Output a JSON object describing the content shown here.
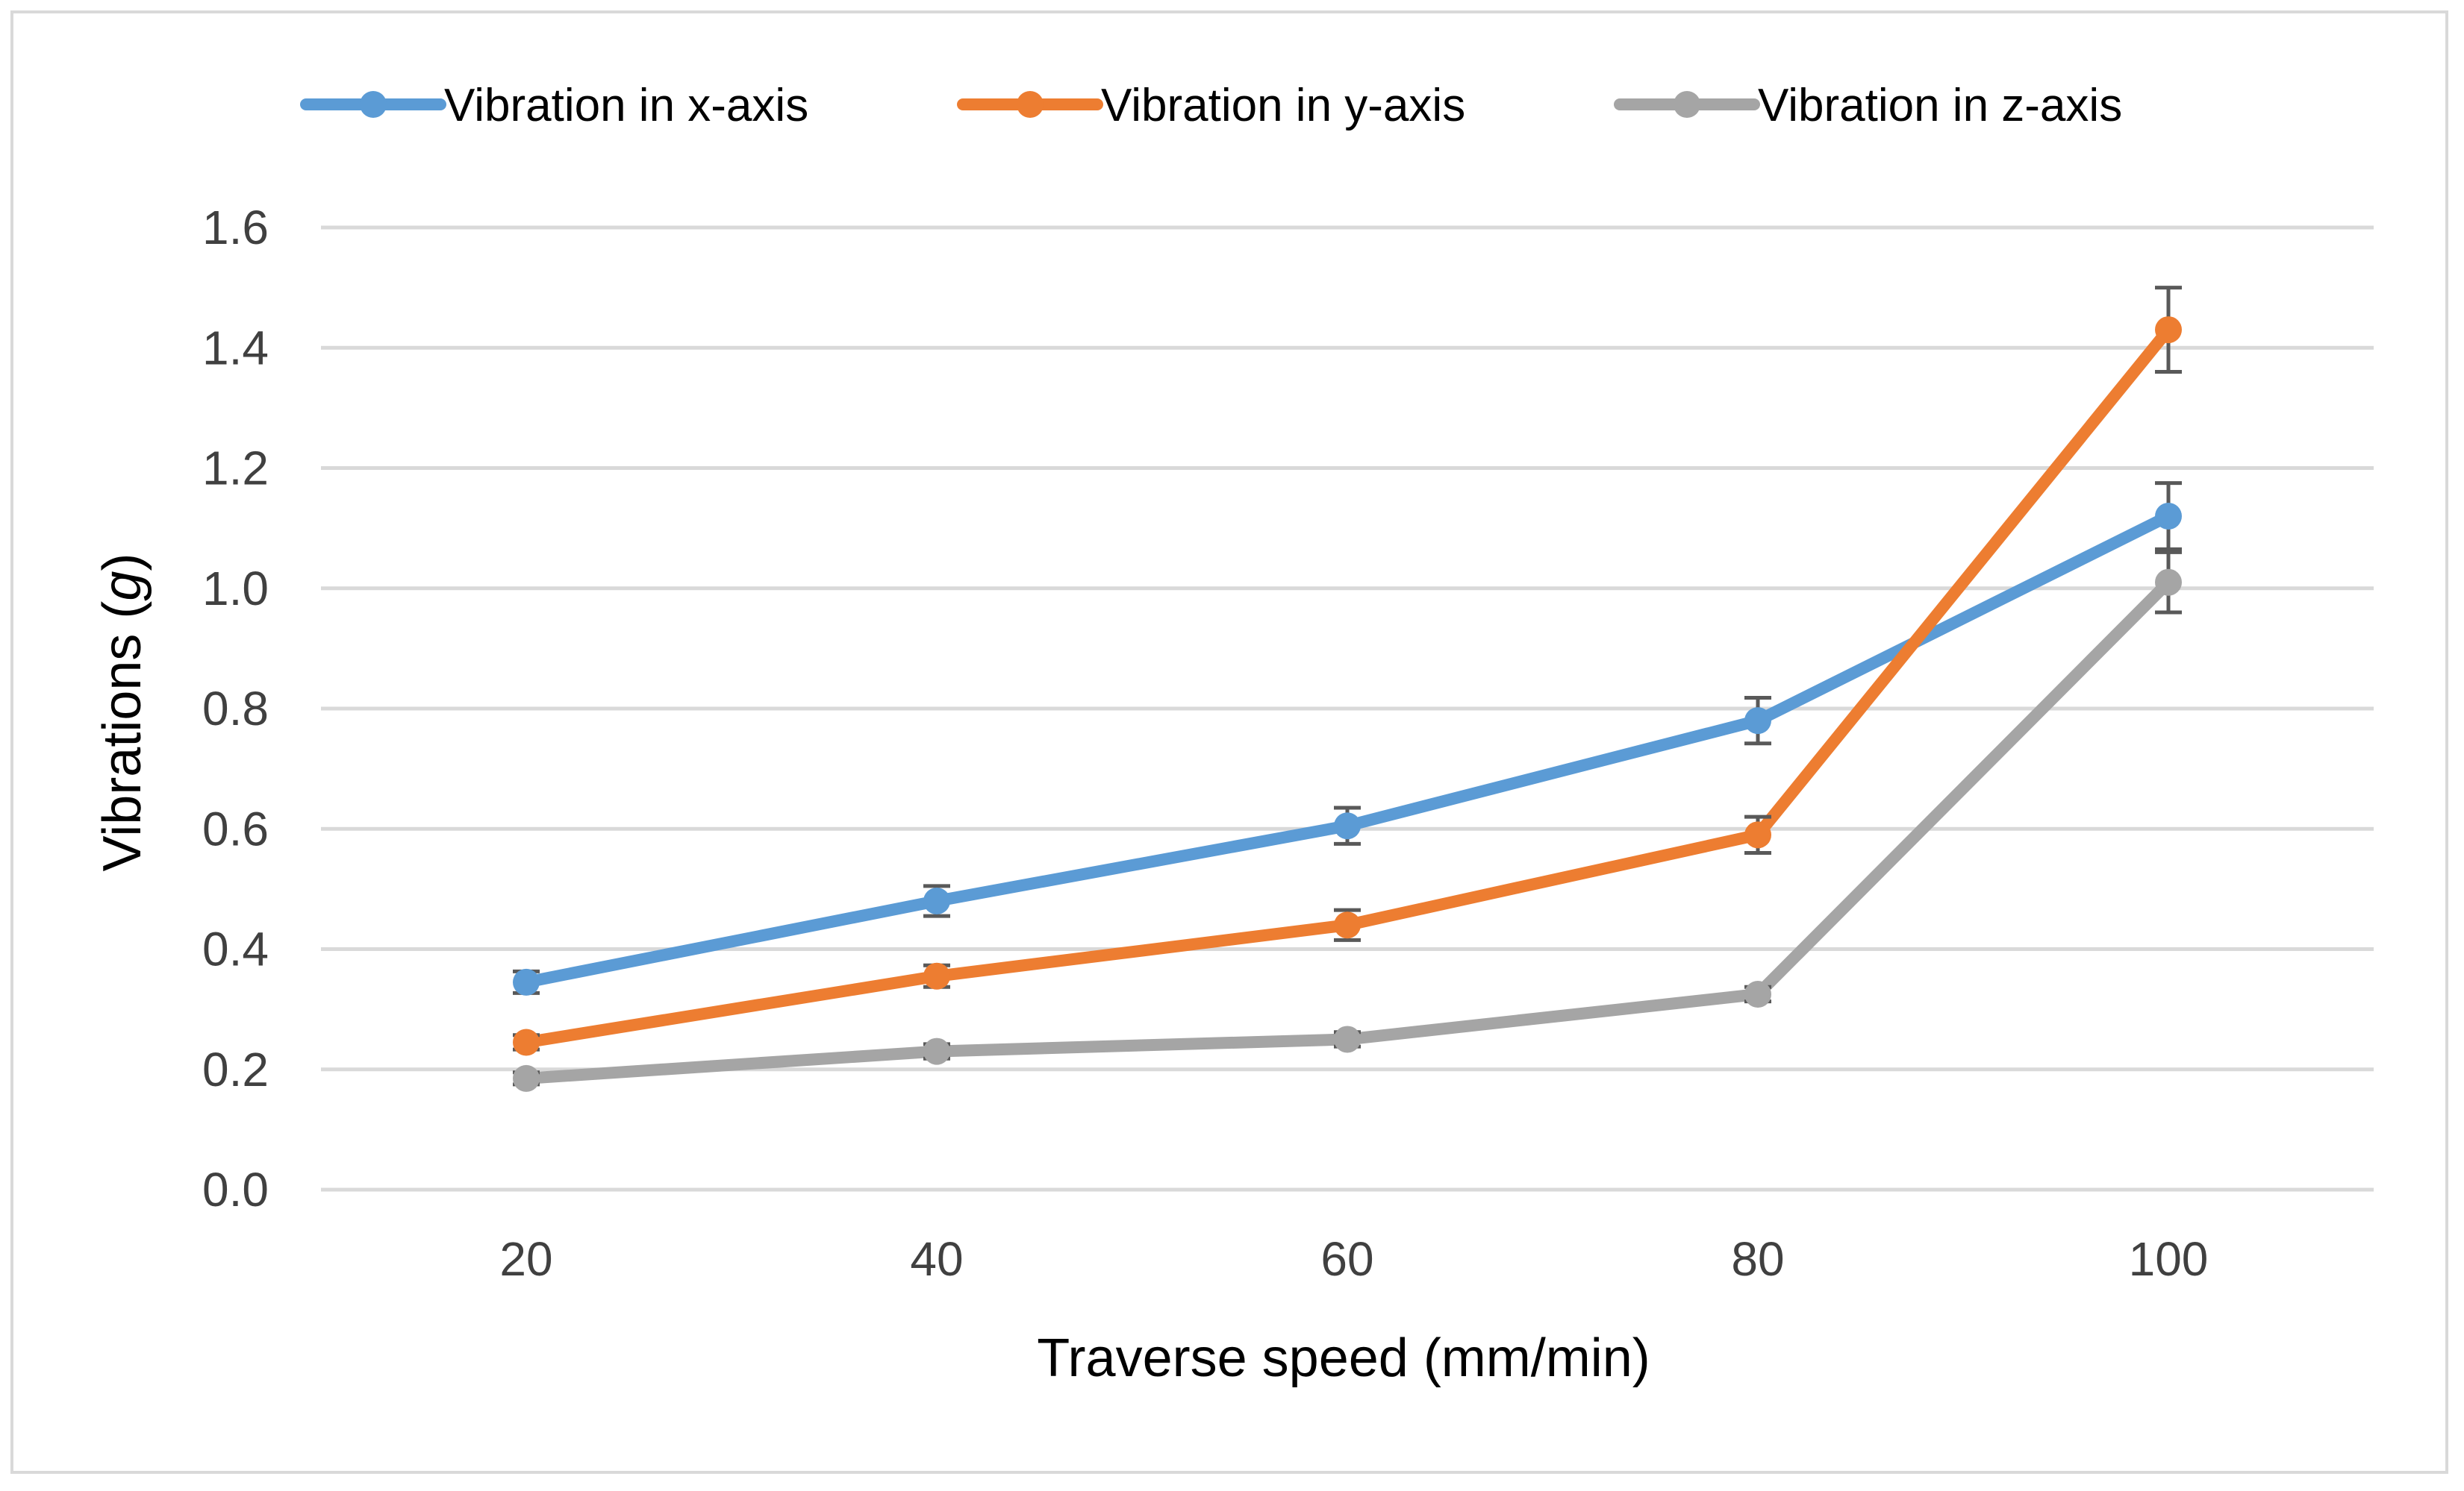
{
  "chart_data": {
    "type": "line",
    "title": "",
    "xlabel": "Traverse speed (mm/min)",
    "ylabel_main": "Vibrations",
    "ylabel_unit_open": " (",
    "ylabel_unit": "g",
    "ylabel_unit_close": ")",
    "categories": [
      "20",
      "40",
      "60",
      "80",
      "100"
    ],
    "ylim": [
      0,
      1.6
    ],
    "yticks": [
      "0.0",
      "0.2",
      "0.4",
      "0.6",
      "0.8",
      "1.0",
      "1.2",
      "1.4",
      "1.6"
    ],
    "grid": true,
    "legend_position": "top",
    "series": [
      {
        "name": "Vibration in x-axis",
        "color": "#5b9bd5",
        "values": [
          0.345,
          0.48,
          0.605,
          0.78,
          1.12
        ],
        "errors": [
          0.018,
          0.025,
          0.03,
          0.038,
          0.055
        ]
      },
      {
        "name": "Vibration in y-axis",
        "color": "#ed7d31",
        "values": [
          0.245,
          0.355,
          0.44,
          0.59,
          1.43
        ],
        "errors": [
          0.012,
          0.018,
          0.025,
          0.03,
          0.07
        ]
      },
      {
        "name": "Vibration in z-axis",
        "color": "#a5a5a5",
        "values": [
          0.185,
          0.23,
          0.25,
          0.325,
          1.01
        ],
        "errors": [
          0.01,
          0.012,
          0.012,
          0.012,
          0.05
        ]
      }
    ]
  }
}
